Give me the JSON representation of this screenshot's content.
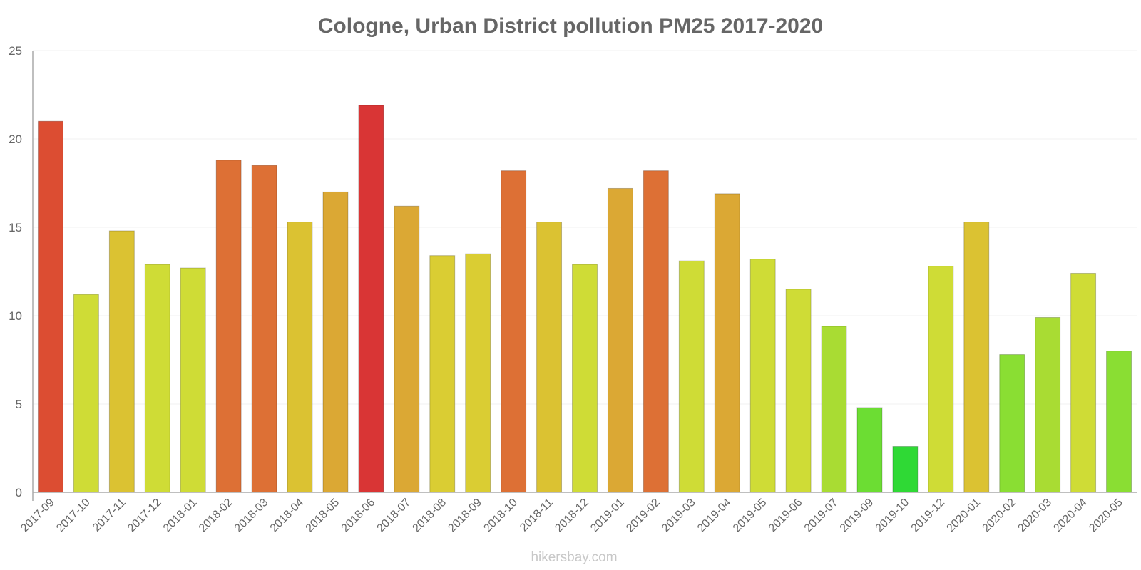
{
  "chart_data": {
    "type": "bar",
    "title": "Cologne, Urban District pollution PM25 2017-2020",
    "xlabel": "",
    "ylabel": "",
    "ylim": [
      0,
      25
    ],
    "yticks": [
      0,
      5,
      10,
      15,
      20,
      25
    ],
    "grid": true,
    "categories": [
      "2017-09",
      "2017-10",
      "2017-11",
      "2017-12",
      "2018-01",
      "2018-02",
      "2018-03",
      "2018-04",
      "2018-05",
      "2018-06",
      "2018-07",
      "2018-08",
      "2018-09",
      "2018-10",
      "2018-11",
      "2018-12",
      "2019-01",
      "2019-02",
      "2019-03",
      "2019-04",
      "2019-05",
      "2019-06",
      "2019-07",
      "2019-09",
      "2019-10",
      "2019-12",
      "2020-01",
      "2020-02",
      "2020-03",
      "2020-04",
      "2020-05"
    ],
    "values": [
      21.0,
      11.2,
      14.8,
      12.9,
      12.7,
      18.8,
      18.5,
      15.3,
      17.0,
      21.9,
      16.2,
      13.4,
      13.5,
      18.2,
      15.3,
      12.9,
      17.2,
      18.2,
      13.1,
      16.9,
      13.2,
      11.5,
      9.4,
      4.8,
      2.6,
      12.8,
      15.3,
      7.8,
      9.9,
      12.4,
      8.0
    ],
    "colors": [
      "#dc4d32",
      "#cfdc36",
      "#dbc232",
      "#cfdc36",
      "#cfdc36",
      "#dd7035",
      "#dd7035",
      "#dbc232",
      "#dba834",
      "#d93535",
      "#dba834",
      "#dacd33",
      "#dacd33",
      "#dd7035",
      "#dbc232",
      "#cfdc36",
      "#dba834",
      "#dd7035",
      "#cfdc36",
      "#dba834",
      "#cfdc36",
      "#cfdc36",
      "#a9dc33",
      "#6cdd33",
      "#2fd935",
      "#cfdc36",
      "#dbc232",
      "#8ade33",
      "#a9dc33",
      "#cfdc36",
      "#8ade33"
    ]
  },
  "footer": {
    "credit": "hikersbay.com"
  }
}
